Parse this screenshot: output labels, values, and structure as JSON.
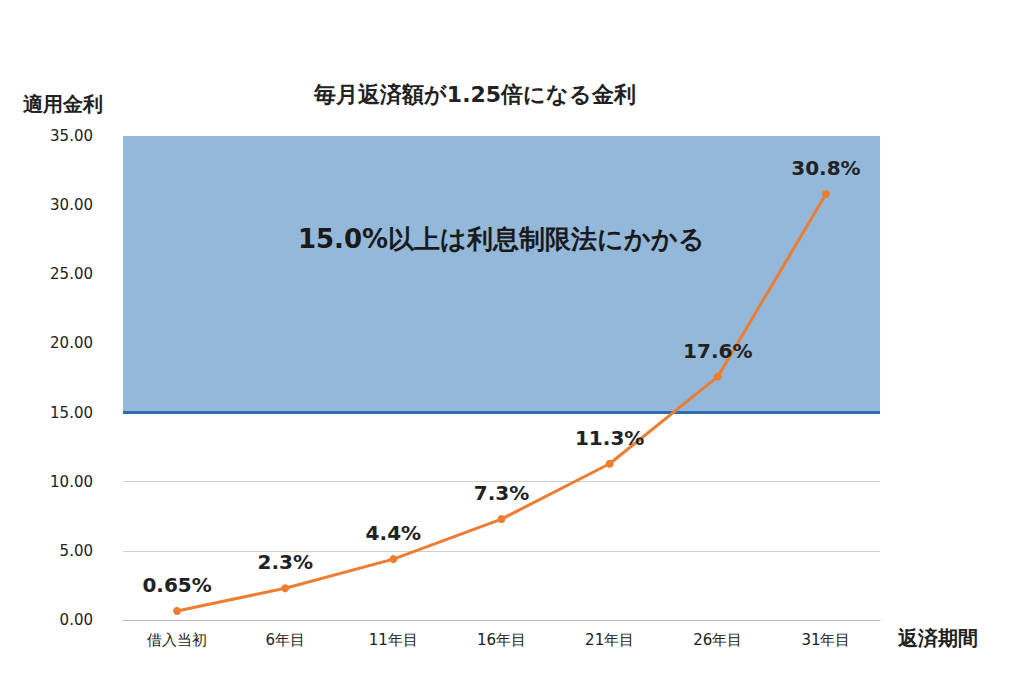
{
  "chart_data": {
    "type": "line",
    "title": "毎月返済額が1.25倍になる金利",
    "y_label": "適用金利",
    "x_label": "返済期間",
    "categories": [
      "借入当初",
      "6年目",
      "11年目",
      "16年目",
      "21年目",
      "26年目",
      "31年目"
    ],
    "values": [
      0.65,
      2.3,
      4.4,
      7.3,
      11.3,
      17.6,
      30.8
    ],
    "value_labels": [
      "0.65%",
      "2.3%",
      "4.4%",
      "7.3%",
      "11.3%",
      "17.6%",
      "30.8%"
    ],
    "color": "#ed7d31",
    "marker": "circle",
    "data_labels": true,
    "ylim": [
      0,
      35
    ],
    "yticks": [
      {
        "value": 0,
        "label": "0.00"
      },
      {
        "value": 5,
        "label": "5.00"
      },
      {
        "value": 10,
        "label": "10.00"
      },
      {
        "value": 15,
        "label": "15.00"
      },
      {
        "value": 20,
        "label": "20.00"
      },
      {
        "value": 25,
        "label": "25.00"
      },
      {
        "value": 30,
        "label": "30.00"
      },
      {
        "value": 35,
        "label": "35.00"
      }
    ],
    "grid": true,
    "annotations": [
      {
        "text": "15.0%以上は利息制限法にかかる",
        "range": [
          15,
          35
        ],
        "color": "#94b8d9"
      }
    ]
  }
}
